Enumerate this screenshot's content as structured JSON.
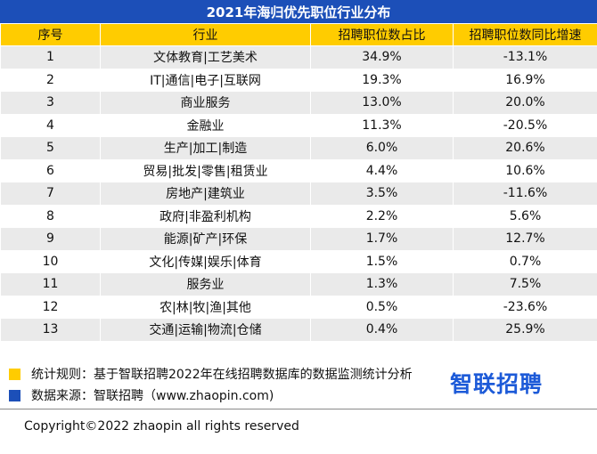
{
  "chart_data": {
    "type": "table",
    "title": "2021年海归优先职位行业分布",
    "columns": [
      "序号",
      "行业",
      "招聘职位数占比",
      "招聘职位数同比增速"
    ],
    "rows": [
      [
        "1",
        "文体教育|工艺美术",
        "34.9%",
        "-13.1%"
      ],
      [
        "2",
        "IT|通信|电子|互联网",
        "19.3%",
        "16.9%"
      ],
      [
        "3",
        "商业服务",
        "13.0%",
        "20.0%"
      ],
      [
        "4",
        "金融业",
        "11.3%",
        "-20.5%"
      ],
      [
        "5",
        "生产|加工|制造",
        "6.0%",
        "20.6%"
      ],
      [
        "6",
        "贸易|批发|零售|租赁业",
        "4.4%",
        "10.6%"
      ],
      [
        "7",
        "房地产|建筑业",
        "3.5%",
        "-11.6%"
      ],
      [
        "8",
        "政府|非盈利机构",
        "2.2%",
        "5.6%"
      ],
      [
        "9",
        "能源|矿产|环保",
        "1.7%",
        "12.7%"
      ],
      [
        "10",
        "文化|传媒|娱乐|体育",
        "1.5%",
        "0.7%"
      ],
      [
        "11",
        "服务业",
        "1.3%",
        "7.5%"
      ],
      [
        "12",
        "农|林|牧|渔|其他",
        "0.5%",
        "-23.6%"
      ],
      [
        "13",
        "交通|运输|物流|仓储",
        "0.4%",
        "25.9%"
      ]
    ]
  },
  "notes": {
    "rule": "统计规则：基于智联招聘2022年在线招聘数据库的数据监测统计分析",
    "source": "数据来源：智联招聘（www.zhaopin.com)"
  },
  "logo_text": "智联招聘",
  "copyright": "Copyright©2022 zhaopin all rights reserved",
  "colors": {
    "title_bg": "#1c4fb8",
    "header_bg": "#ffcc00",
    "stripe": "#eaeaea",
    "logo": "#1c5ad8"
  }
}
